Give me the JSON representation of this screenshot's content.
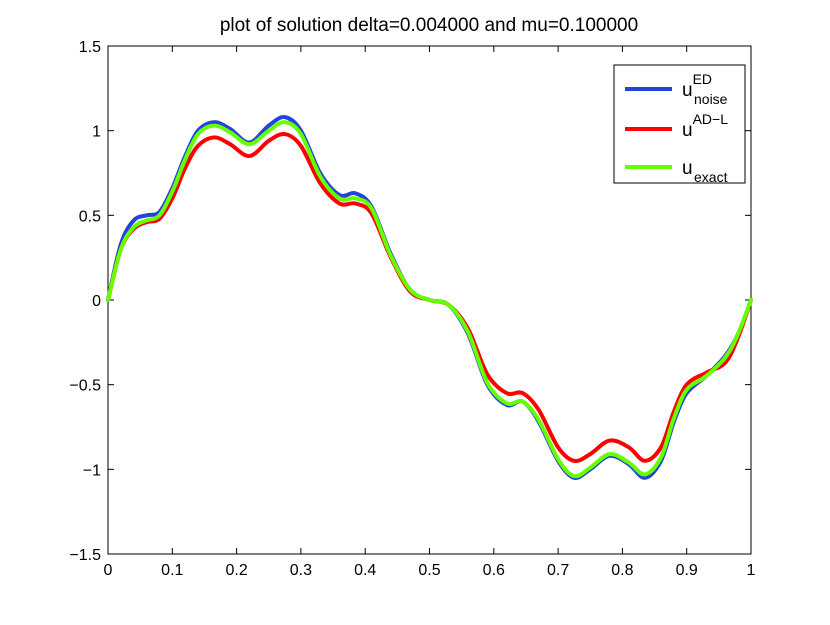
{
  "chart_data": {
    "type": "line",
    "title": "plot of solution delta=0.004000 and mu=0.100000",
    "xlabel": "",
    "ylabel": "",
    "xlim": [
      0,
      1
    ],
    "ylim": [
      -1.5,
      1.5
    ],
    "xticks": [
      0,
      0.1,
      0.2,
      0.3,
      0.4,
      0.5,
      0.6,
      0.7,
      0.8,
      0.9,
      1
    ],
    "yticks": [
      -1.5,
      -1,
      -0.5,
      0,
      0.5,
      1,
      1.5
    ],
    "xtick_labels": [
      "0",
      "0.1",
      "0.2",
      "0.3",
      "0.4",
      "0.5",
      "0.6",
      "0.7",
      "0.8",
      "0.9",
      "1"
    ],
    "ytick_labels": [
      "−1.5",
      "−1",
      "−0.5",
      "0",
      "0.5",
      "1",
      "1.5"
    ],
    "grid": false,
    "legend_position": "top-right",
    "x": [
      0,
      0.02,
      0.04,
      0.06,
      0.08,
      0.1,
      0.12,
      0.14,
      0.165,
      0.19,
      0.22,
      0.25,
      0.275,
      0.3,
      0.33,
      0.36,
      0.385,
      0.41,
      0.44,
      0.47,
      0.5,
      0.53,
      0.56,
      0.59,
      0.62,
      0.645,
      0.67,
      0.7,
      0.725,
      0.75,
      0.78,
      0.81,
      0.835,
      0.86,
      0.88,
      0.9,
      0.93,
      0.96,
      0.98,
      1
    ],
    "series": [
      {
        "name": "u^ED_noise",
        "legend_base": "u",
        "legend_sup": "ED",
        "legend_sub": "noise",
        "color": "#2343d9",
        "values": [
          0,
          0.33,
          0.47,
          0.5,
          0.52,
          0.66,
          0.85,
          1.0,
          1.05,
          1.01,
          0.93,
          1.03,
          1.08,
          1.0,
          0.75,
          0.62,
          0.63,
          0.55,
          0.27,
          0.06,
          0.0,
          -0.03,
          -0.2,
          -0.5,
          -0.62,
          -0.6,
          -0.72,
          -0.95,
          -1.05,
          -1.0,
          -0.92,
          -0.97,
          -1.05,
          -0.95,
          -0.72,
          -0.55,
          -0.45,
          -0.33,
          -0.2,
          0
        ]
      },
      {
        "name": "u^AD-L",
        "legend_base": "u",
        "legend_sup": "AD−L",
        "legend_sub": "",
        "color": "#ff0000",
        "values": [
          0,
          0.3,
          0.42,
          0.46,
          0.48,
          0.6,
          0.78,
          0.91,
          0.96,
          0.92,
          0.85,
          0.94,
          0.98,
          0.91,
          0.69,
          0.57,
          0.57,
          0.51,
          0.25,
          0.05,
          0.0,
          -0.03,
          -0.17,
          -0.44,
          -0.55,
          -0.55,
          -0.65,
          -0.87,
          -0.95,
          -0.91,
          -0.83,
          -0.87,
          -0.95,
          -0.87,
          -0.66,
          -0.5,
          -0.43,
          -0.37,
          -0.22,
          0
        ]
      },
      {
        "name": "u_exact",
        "legend_base": "u",
        "legend_sup": "",
        "legend_sub": "exact",
        "color": "#66ff00",
        "values": [
          0,
          0.3,
          0.43,
          0.47,
          0.5,
          0.64,
          0.83,
          0.98,
          1.03,
          0.99,
          0.92,
          1.0,
          1.05,
          0.98,
          0.73,
          0.6,
          0.6,
          0.54,
          0.26,
          0.06,
          0.0,
          -0.03,
          -0.19,
          -0.49,
          -0.61,
          -0.6,
          -0.71,
          -0.94,
          -1.04,
          -0.99,
          -0.91,
          -0.96,
          -1.03,
          -0.93,
          -0.7,
          -0.53,
          -0.45,
          -0.34,
          -0.2,
          0
        ]
      }
    ]
  }
}
